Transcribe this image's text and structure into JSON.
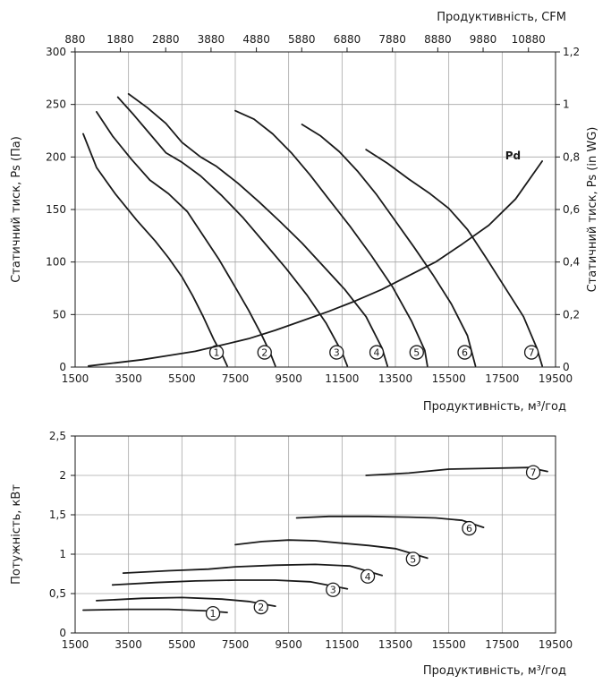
{
  "chart_data": [
    {
      "type": "line",
      "xlabel_bottom": "Продуктивність, м³/год",
      "xlabel_top": "Продуктивність, CFM",
      "ylabel_left": "Статичний тиск, Ps (Па)",
      "ylabel_right": "Статичний тиск, Ps (in WG)",
      "xlim": [
        1500,
        19500
      ],
      "ylim": [
        0,
        300
      ],
      "grid": true,
      "x_ticks": [
        "1500",
        "3500",
        "5500",
        "7500",
        "9500",
        "11500",
        "13500",
        "15500",
        "17500",
        "19500"
      ],
      "y_ticks": [
        "0",
        "50",
        "100",
        "150",
        "200",
        "250",
        "300"
      ],
      "top_ticks": [
        "880",
        "1880",
        "2880",
        "3880",
        "4880",
        "5880",
        "6880",
        "7880",
        "8880",
        "9880",
        "10880"
      ],
      "top_tick_values": [
        1496,
        3194,
        4893,
        6592,
        8291,
        9990,
        11689,
        13388,
        15087,
        16786,
        18485
      ],
      "right_ticks": [
        "0",
        "0,2",
        "0,4",
        "0,6",
        "0,8",
        "1",
        "1,2"
      ],
      "right_tick_values": [
        0,
        50,
        100,
        150,
        200,
        250,
        300
      ],
      "series": [
        {
          "name": "1",
          "x": [
            1800,
            2300,
            3000,
            3800,
            4500,
            5000,
            5500,
            5900,
            6300,
            6700,
            7000,
            7200
          ],
          "y": [
            222,
            190,
            165,
            140,
            120,
            104,
            86,
            68,
            48,
            26,
            12,
            1
          ]
        },
        {
          "name": "2",
          "x": [
            2300,
            2900,
            3600,
            4300,
            5000,
            5700,
            6300,
            6900,
            7500,
            8000,
            8500,
            8800,
            9000
          ],
          "y": [
            243,
            220,
            198,
            178,
            165,
            148,
            125,
            102,
            76,
            54,
            30,
            14,
            1
          ]
        },
        {
          "name": "3",
          "x": [
            3100,
            3700,
            4300,
            4900,
            5500,
            6200,
            7000,
            7800,
            8600,
            9400,
            10200,
            10900,
            11500,
            11700
          ],
          "y": [
            257,
            240,
            222,
            204,
            195,
            182,
            163,
            142,
            118,
            94,
            68,
            42,
            14,
            1
          ]
        },
        {
          "name": "4",
          "x": [
            3500,
            4200,
            4900,
            5500,
            6200,
            6800,
            7600,
            8400,
            9200,
            10000,
            10800,
            11600,
            12400,
            13000,
            13200
          ],
          "y": [
            260,
            247,
            232,
            214,
            200,
            191,
            175,
            157,
            138,
            118,
            96,
            74,
            48,
            18,
            1
          ]
        },
        {
          "name": "5",
          "x": [
            7500,
            8200,
            8900,
            9600,
            10300,
            11000,
            11800,
            12600,
            13400,
            14100,
            14600,
            14700
          ],
          "y": [
            244,
            236,
            222,
            204,
            183,
            160,
            134,
            106,
            76,
            44,
            16,
            1
          ]
        },
        {
          "name": "6",
          "x": [
            10000,
            10700,
            11400,
            12100,
            12800,
            13500,
            14200,
            14900,
            15600,
            16200,
            16500
          ],
          "y": [
            231,
            220,
            205,
            186,
            164,
            139,
            114,
            88,
            60,
            30,
            1
          ]
        },
        {
          "name": "7",
          "x": [
            12400,
            13200,
            14000,
            14800,
            15500,
            16200,
            16900,
            17600,
            18300,
            18800,
            19000
          ],
          "y": [
            207,
            194,
            179,
            165,
            151,
            131,
            104,
            76,
            48,
            18,
            1
          ]
        },
        {
          "name": "Pd",
          "x": [
            2000,
            3000,
            4000,
            5000,
            6000,
            7000,
            8000,
            9000,
            10000,
            11000,
            12000,
            13000,
            14000,
            15000,
            16000,
            17000,
            18000,
            19000
          ],
          "y": [
            1,
            4,
            7,
            11,
            15,
            21,
            27,
            35,
            44,
            53,
            63,
            74,
            87,
            100,
            117,
            135,
            160,
            196
          ]
        }
      ]
    },
    {
      "type": "line",
      "xlabel": "Продуктивність, м³/год",
      "ylabel": "Потужність, кВт",
      "xlim": [
        1500,
        19500
      ],
      "ylim": [
        0,
        2.5
      ],
      "grid": true,
      "x_ticks": [
        "1500",
        "3500",
        "5500",
        "7500",
        "9500",
        "11500",
        "13500",
        "15500",
        "17500",
        "19500"
      ],
      "y_ticks": [
        "0",
        "0,5",
        "1",
        "1,5",
        "2",
        "2,5"
      ],
      "series": [
        {
          "name": "1",
          "x": [
            1800,
            3500,
            5000,
            6500,
            7200
          ],
          "y": [
            0.29,
            0.3,
            0.3,
            0.28,
            0.26
          ]
        },
        {
          "name": "2",
          "x": [
            2300,
            4000,
            5500,
            7000,
            8000,
            9000
          ],
          "y": [
            0.41,
            0.44,
            0.45,
            0.43,
            0.4,
            0.34
          ]
        },
        {
          "name": "3",
          "x": [
            2900,
            4500,
            6000,
            7500,
            9000,
            10300,
            11700
          ],
          "y": [
            0.61,
            0.64,
            0.66,
            0.67,
            0.67,
            0.65,
            0.56
          ]
        },
        {
          "name": "4",
          "x": [
            3300,
            5000,
            6500,
            7500,
            9000,
            10500,
            11800,
            13000
          ],
          "y": [
            0.76,
            0.79,
            0.81,
            0.84,
            0.86,
            0.87,
            0.85,
            0.73
          ]
        },
        {
          "name": "5",
          "x": [
            7500,
            8500,
            9500,
            10500,
            11500,
            12500,
            13500,
            14700
          ],
          "y": [
            1.12,
            1.16,
            1.18,
            1.17,
            1.14,
            1.11,
            1.07,
            0.95
          ]
        },
        {
          "name": "6",
          "x": [
            9800,
            11000,
            12500,
            14000,
            15000,
            16000,
            16800
          ],
          "y": [
            1.46,
            1.48,
            1.48,
            1.47,
            1.46,
            1.43,
            1.34
          ]
        },
        {
          "name": "7",
          "x": [
            12400,
            14000,
            15500,
            17000,
            18500,
            19200
          ],
          "y": [
            2.0,
            2.03,
            2.08,
            2.09,
            2.1,
            2.05
          ]
        }
      ]
    }
  ]
}
